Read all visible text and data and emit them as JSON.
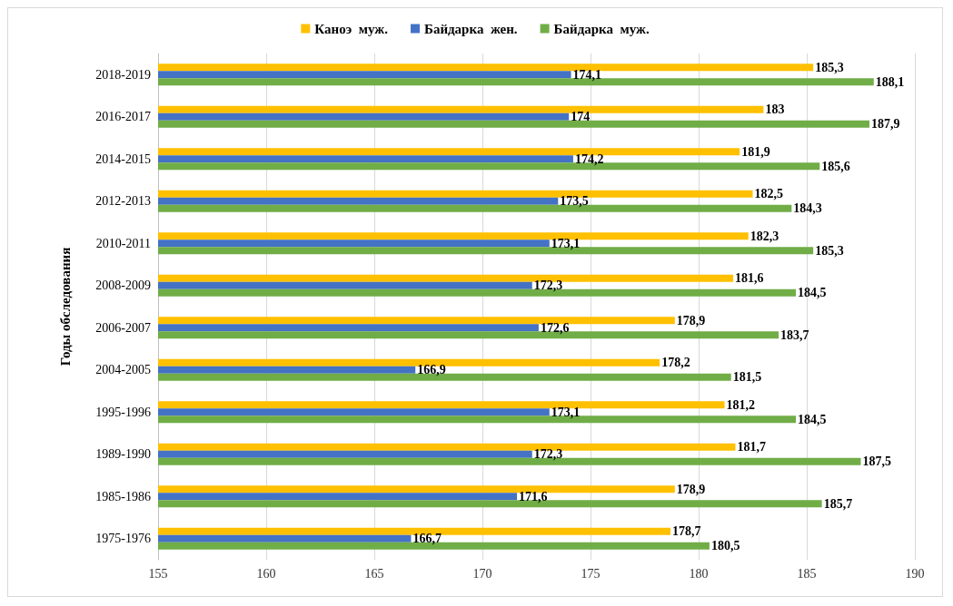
{
  "chart_data": {
    "type": "bar",
    "orientation": "horizontal",
    "ylabel": "Годы обследования",
    "categories": [
      "2018-2019",
      "2016-2017",
      "2014-2015",
      "2012-2013",
      "2010-2011",
      "2008-2009",
      "2006-2007",
      "2004-2005",
      "1995-1996",
      "1989-1990",
      "1985-1986",
      "1975-1976"
    ],
    "series": [
      {
        "name": "Каноэ  муж.",
        "color": "#ffc000",
        "values": [
          185.3,
          183,
          181.9,
          182.5,
          182.3,
          181.6,
          178.9,
          178.2,
          181.2,
          181.7,
          178.9,
          178.7
        ],
        "value_labels": [
          "185,3",
          "183",
          "181,9",
          "182,5",
          "182,3",
          "181,6",
          "178,9",
          "178,2",
          "181,2",
          "181,7",
          "178,9",
          "178,7"
        ]
      },
      {
        "name": "Байдарка  жен.",
        "color": "#4472c4",
        "values": [
          174.1,
          174,
          174.2,
          173.5,
          173.1,
          172.3,
          172.6,
          166.9,
          173.1,
          172.3,
          171.6,
          166.7
        ],
        "value_labels": [
          "174,1",
          "174",
          "174,2",
          "173,5",
          "173,1",
          "172,3",
          "172,6",
          "166,9",
          "173,1",
          "172,3",
          "171,6",
          "166,7"
        ]
      },
      {
        "name": "Байдарка  муж.",
        "color": "#70ad47",
        "values": [
          188.1,
          187.9,
          185.6,
          184.3,
          185.3,
          184.5,
          183.7,
          181.5,
          184.5,
          187.5,
          185.7,
          180.5
        ],
        "value_labels": [
          "188,1",
          "187,9",
          "185,6",
          "184,3",
          "185,3",
          "184,5",
          "183,7",
          "181,5",
          "184,5",
          "187,5",
          "185,7",
          "180,5"
        ]
      }
    ],
    "xlim": [
      155,
      190
    ],
    "xticks": [
      155,
      160,
      165,
      170,
      175,
      180,
      185,
      190
    ],
    "grid": "x",
    "legend": "top"
  }
}
